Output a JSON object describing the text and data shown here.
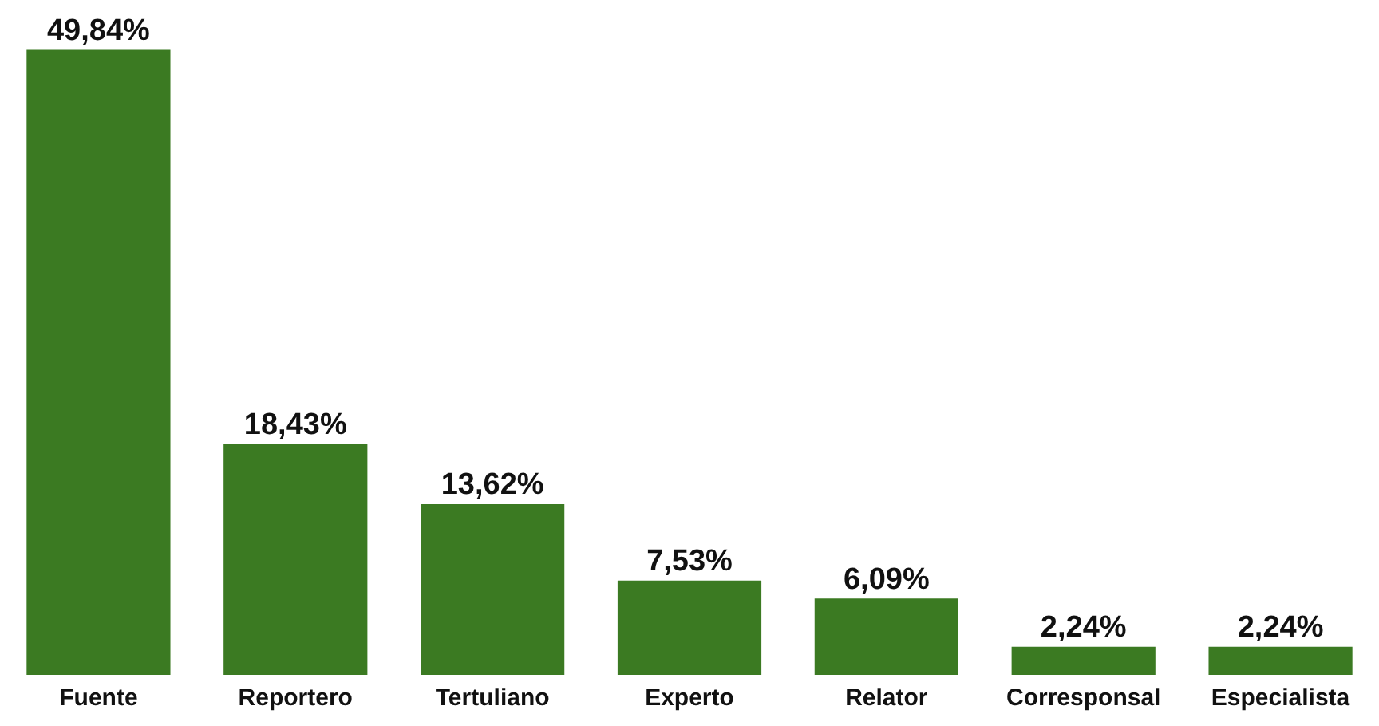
{
  "chart_data": {
    "type": "bar",
    "categories": [
      "Fuente",
      "Reportero",
      "Tertuliano",
      "Experto",
      "Relator",
      "Corresponsal",
      "Especialista"
    ],
    "values": [
      49.84,
      18.43,
      13.62,
      7.53,
      6.09,
      2.24,
      2.24
    ],
    "value_labels": [
      "49,84%",
      "18,43%",
      "13,62%",
      "7,53%",
      "6,09%",
      "2,24%",
      "2,24%"
    ],
    "color": "#3b7a22",
    "ylim": [
      0,
      50
    ],
    "tick_labels": "x",
    "grid": false,
    "legend": false
  }
}
